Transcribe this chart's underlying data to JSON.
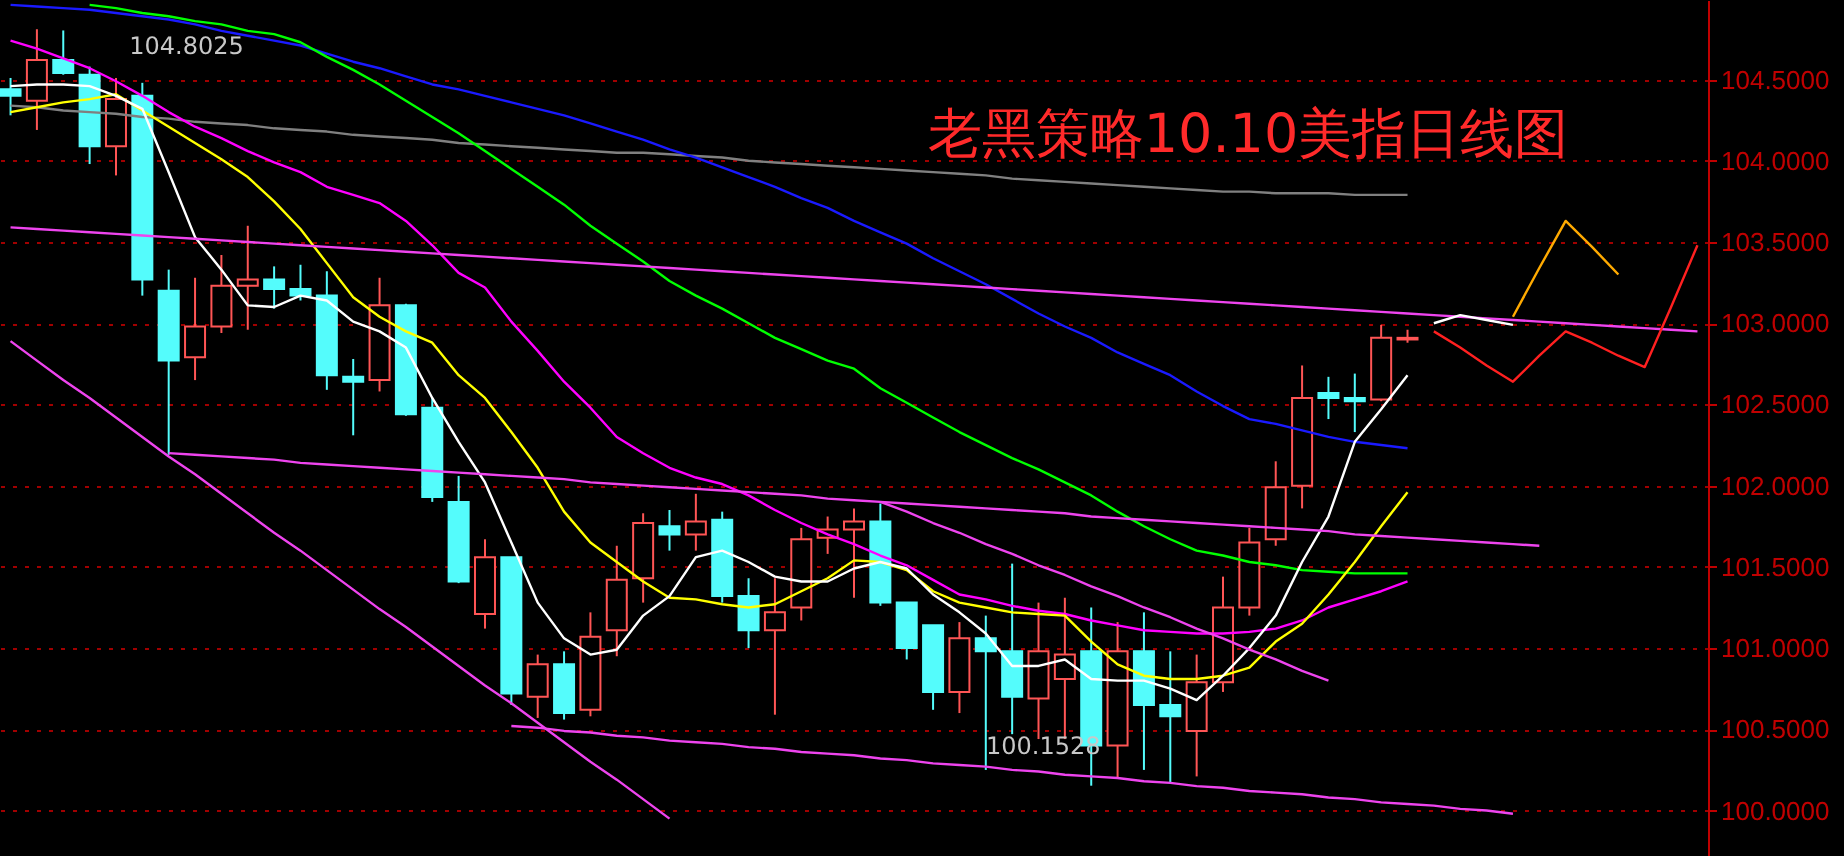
{
  "chart_data": {
    "type": "candlestick",
    "title": "老黑策略10.10美指日线图",
    "categories": [
      null,
      null,
      null,
      null,
      null,
      null,
      null,
      null,
      null,
      null,
      null,
      null,
      null,
      null,
      null,
      null,
      null,
      null,
      null,
      null,
      null,
      null,
      null,
      null,
      null,
      null,
      null,
      null,
      null,
      null,
      null,
      null,
      null,
      null,
      null,
      null,
      null,
      null,
      null,
      null,
      null,
      null,
      null,
      null,
      null,
      null,
      null,
      null,
      null,
      null,
      null,
      null,
      null,
      null,
      null,
      null,
      null,
      null,
      null,
      null,
      null,
      null,
      null,
      null,
      null
    ],
    "ohlc": [
      [
        104.44,
        104.51,
        104.28,
        104.4
      ],
      [
        104.37,
        104.81,
        104.19,
        104.62
      ],
      [
        104.62,
        104.8025,
        104.53,
        104.54
      ],
      [
        104.53,
        104.58,
        103.98,
        104.09
      ],
      [
        104.09,
        104.51,
        103.91,
        104.38
      ],
      [
        104.4,
        104.48,
        103.17,
        103.27
      ],
      [
        103.2,
        103.33,
        102.19,
        102.77
      ],
      [
        102.79,
        103.28,
        102.65,
        102.98
      ],
      [
        102.98,
        103.42,
        102.94,
        103.23
      ],
      [
        103.23,
        103.6,
        102.96,
        103.27
      ],
      [
        103.27,
        103.35,
        103.09,
        103.21
      ],
      [
        103.21,
        103.36,
        103.14,
        103.17
      ],
      [
        103.17,
        103.32,
        102.59,
        102.68
      ],
      [
        102.67,
        102.78,
        102.31,
        102.64
      ],
      [
        102.65,
        103.28,
        102.58,
        103.11
      ],
      [
        103.11,
        103.12,
        102.43,
        102.44
      ],
      [
        102.48,
        102.54,
        101.9,
        101.93
      ],
      [
        101.9,
        102.06,
        101.4,
        101.41
      ],
      [
        101.21,
        101.67,
        101.12,
        101.56
      ],
      [
        101.56,
        101.56,
        100.65,
        100.72
      ],
      [
        100.7,
        100.96,
        100.57,
        100.9
      ],
      [
        100.9,
        100.98,
        100.56,
        100.6
      ],
      [
        100.62,
        101.22,
        100.58,
        101.07
      ],
      [
        101.11,
        101.63,
        100.95,
        101.42
      ],
      [
        101.43,
        101.83,
        101.28,
        101.77
      ],
      [
        101.75,
        101.85,
        101.6,
        101.7
      ],
      [
        101.7,
        101.95,
        101.6,
        101.78
      ],
      [
        101.79,
        101.84,
        101.28,
        101.32
      ],
      [
        101.32,
        101.43,
        101.0,
        101.11
      ],
      [
        101.11,
        101.43,
        100.59,
        101.22
      ],
      [
        101.25,
        101.74,
        101.17,
        101.67
      ],
      [
        101.68,
        101.81,
        101.58,
        101.73
      ],
      [
        101.73,
        101.86,
        101.31,
        101.78
      ],
      [
        101.78,
        101.89,
        101.26,
        101.28
      ],
      [
        101.28,
        101.28,
        100.93,
        101.0
      ],
      [
        101.14,
        101.14,
        100.62,
        100.73
      ],
      [
        100.73,
        101.16,
        100.6,
        101.06
      ],
      [
        101.06,
        101.2,
        100.25,
        100.98
      ],
      [
        100.98,
        101.52,
        100.47,
        100.7
      ],
      [
        100.69,
        101.28,
        100.44,
        100.98
      ],
      [
        100.81,
        101.31,
        100.44,
        100.96
      ],
      [
        100.98,
        101.25,
        100.1528,
        100.4
      ],
      [
        100.4,
        101.16,
        100.2,
        100.98
      ],
      [
        100.98,
        101.22,
        100.25,
        100.65
      ],
      [
        100.65,
        100.98,
        100.17,
        100.58
      ],
      [
        100.49,
        100.96,
        100.21,
        100.79
      ],
      [
        100.79,
        101.44,
        100.73,
        101.25
      ],
      [
        101.25,
        101.74,
        101.2,
        101.65
      ],
      [
        101.67,
        102.15,
        101.63,
        101.99
      ],
      [
        102.0,
        102.74,
        101.86,
        102.54
      ],
      [
        102.57,
        102.67,
        102.41,
        102.54
      ],
      [
        102.54,
        102.69,
        102.33,
        102.52
      ],
      [
        102.53,
        102.99,
        102.52,
        102.91
      ],
      [
        102.9,
        102.96,
        102.88,
        102.91
      ],
      null,
      null,
      null,
      null,
      null,
      null,
      null,
      null,
      null,
      null,
      null
    ],
    "colors": [
      "#54fcfc",
      "#ff5555",
      "#54fcfc",
      "#54fcfc",
      "#ff5555",
      "#54fcfc",
      "#54fcfc",
      "#ff5555",
      "#ff5555",
      "#ff5555",
      "#54fcfc",
      "#54fcfc",
      "#54fcfc",
      "#54fcfc",
      "#ff5555",
      "#54fcfc",
      "#54fcfc",
      "#54fcfc",
      "#ff5555",
      "#54fcfc",
      "#ff5555",
      "#54fcfc",
      "#ff5555",
      "#ff5555",
      "#ff5555",
      "#54fcfc",
      "#ff5555",
      "#54fcfc",
      "#54fcfc",
      "#ff5555",
      "#ff5555",
      "#ff5555",
      "#ff5555",
      "#54fcfc",
      "#54fcfc",
      "#54fcfc",
      "#ff5555",
      "#54fcfc",
      "#54fcfc",
      "#ff5555",
      "#ff5555",
      "#54fcfc",
      "#ff5555",
      "#54fcfc",
      "#54fcfc",
      "#ff5555",
      "#ff5555",
      "#ff5555",
      "#ff5555",
      "#ff5555",
      "#54fcfc",
      "#54fcfc",
      "#ff5555",
      "#ff5555",
      null,
      null,
      null,
      null,
      null,
      null,
      null,
      null,
      null,
      null,
      null
    ],
    "series": [
      {
        "type": "line",
        "color": "#808080",
        "values": [
          104.34,
          104.33,
          104.31,
          104.3,
          104.29,
          104.27,
          104.26,
          104.24,
          104.23,
          104.22,
          104.2,
          104.19,
          104.18,
          104.16,
          104.15,
          104.14,
          104.13,
          104.11,
          104.1,
          104.09,
          104.08,
          104.07,
          104.06,
          104.05,
          104.05,
          104.04,
          104.03,
          104.02,
          104.0,
          103.99,
          103.98,
          103.97,
          103.96,
          103.95,
          103.94,
          103.93,
          103.92,
          103.91,
          103.89,
          103.88,
          103.87,
          103.86,
          103.85,
          103.84,
          103.83,
          103.82,
          103.81,
          103.81,
          103.8,
          103.8,
          103.8,
          103.79,
          103.79,
          103.79,
          null,
          null,
          null,
          null,
          null,
          null,
          null,
          null,
          null,
          null,
          null
        ]
      },
      {
        "type": "line",
        "color": "#1a1aff",
        "values": [
          104.96,
          104.95,
          104.94,
          104.93,
          104.91,
          104.89,
          104.87,
          104.84,
          104.8,
          104.77,
          104.74,
          104.71,
          104.66,
          104.61,
          104.57,
          104.52,
          104.47,
          104.44,
          104.4,
          104.36,
          104.32,
          104.28,
          104.23,
          104.18,
          104.13,
          104.07,
          104.02,
          103.96,
          103.9,
          103.84,
          103.77,
          103.71,
          103.63,
          103.56,
          103.49,
          103.4,
          103.32,
          103.24,
          103.15,
          103.06,
          102.98,
          102.91,
          102.82,
          102.75,
          102.68,
          102.58,
          102.49,
          102.41,
          102.38,
          102.34,
          102.3,
          102.27,
          102.25,
          102.23,
          null,
          null,
          null,
          null,
          null,
          null,
          null,
          null,
          null,
          null,
          null
        ]
      },
      {
        "type": "line",
        "color": "#00ff00",
        "values": [
          null,
          null,
          null,
          104.96,
          104.94,
          104.91,
          104.89,
          104.86,
          104.84,
          104.8,
          104.78,
          104.73,
          104.64,
          104.56,
          104.47,
          104.37,
          104.27,
          104.17,
          104.06,
          103.95,
          103.84,
          103.73,
          103.6,
          103.49,
          103.38,
          103.26,
          103.17,
          103.09,
          103.0,
          102.91,
          102.84,
          102.77,
          102.72,
          102.6,
          102.51,
          102.42,
          102.33,
          102.25,
          102.17,
          102.1,
          102.02,
          101.94,
          101.84,
          101.75,
          101.67,
          101.6,
          101.57,
          101.53,
          101.51,
          101.48,
          101.47,
          101.46,
          101.46,
          101.46,
          null,
          null,
          null,
          null,
          null,
          null,
          null,
          null,
          null,
          null,
          null
        ]
      },
      {
        "type": "line",
        "color": "#ff00ff",
        "values": [
          104.74,
          104.69,
          104.63,
          104.57,
          104.49,
          104.4,
          104.3,
          104.21,
          104.14,
          104.06,
          103.99,
          103.93,
          103.84,
          103.79,
          103.74,
          103.63,
          103.48,
          103.31,
          103.22,
          103.01,
          102.83,
          102.64,
          102.48,
          102.3,
          102.2,
          102.11,
          102.05,
          102.01,
          101.94,
          101.85,
          101.77,
          101.7,
          101.64,
          101.57,
          101.51,
          101.42,
          101.33,
          101.3,
          101.26,
          101.23,
          101.21,
          101.17,
          101.14,
          101.11,
          101.1,
          101.09,
          101.09,
          101.1,
          101.12,
          101.17,
          101.25,
          101.3,
          101.35,
          101.41,
          null,
          null,
          null,
          null,
          null,
          null,
          null,
          null,
          null,
          null,
          null
        ]
      },
      {
        "type": "line",
        "color": "#ffff00",
        "values": [
          104.3,
          104.33,
          104.36,
          104.38,
          104.41,
          104.31,
          104.21,
          104.11,
          104.01,
          103.9,
          103.75,
          103.58,
          103.37,
          103.16,
          103.04,
          102.95,
          102.88,
          102.68,
          102.54,
          102.33,
          102.11,
          101.84,
          101.65,
          101.53,
          101.41,
          101.31,
          101.3,
          101.27,
          101.25,
          101.27,
          101.35,
          101.43,
          101.54,
          101.53,
          101.48,
          101.35,
          101.28,
          101.25,
          101.22,
          101.21,
          101.2,
          101.04,
          100.9,
          100.83,
          100.81,
          100.81,
          100.83,
          100.88,
          101.04,
          101.15,
          101.33,
          101.53,
          101.75,
          101.96,
          null,
          null,
          null,
          null,
          null,
          null,
          null,
          null,
          null,
          null,
          null
        ]
      },
      {
        "type": "line",
        "color": "#ffffff",
        "values": [
          104.46,
          104.47,
          104.47,
          104.46,
          104.4,
          104.32,
          103.93,
          103.53,
          103.33,
          103.11,
          103.1,
          103.17,
          103.14,
          103.01,
          102.95,
          102.85,
          102.54,
          102.27,
          102.02,
          101.65,
          101.28,
          101.06,
          100.96,
          100.99,
          101.2,
          101.32,
          101.56,
          101.6,
          101.53,
          101.44,
          101.41,
          101.41,
          101.49,
          101.53,
          101.49,
          101.33,
          101.22,
          101.09,
          100.89,
          100.89,
          100.93,
          100.81,
          100.8,
          100.8,
          100.75,
          100.68,
          100.83,
          101.0,
          101.2,
          101.53,
          101.81,
          102.27,
          102.47,
          102.68,
          null,
          null,
          null,
          null,
          null,
          null,
          null,
          null,
          null,
          null,
          null
        ]
      },
      {
        "type": "line",
        "color": "#ee44ee",
        "values": [
          103.59,
          103.58,
          103.57,
          103.56,
          103.55,
          103.54,
          103.53,
          103.52,
          103.51,
          103.5,
          103.49,
          103.48,
          103.47,
          103.46,
          103.45,
          103.44,
          103.43,
          103.42,
          103.41,
          103.4,
          103.39,
          103.38,
          103.37,
          103.36,
          103.35,
          103.34,
          103.33,
          103.32,
          103.31,
          103.3,
          103.29,
          103.28,
          103.27,
          103.26,
          103.25,
          103.24,
          103.23,
          103.22,
          103.21,
          103.2,
          103.19,
          103.18,
          103.17,
          103.16,
          103.15,
          103.14,
          103.13,
          103.12,
          103.11,
          103.1,
          103.09,
          103.08,
          103.07,
          103.06,
          103.05,
          103.04,
          103.03,
          103.02,
          103.01,
          103.0,
          102.99,
          102.98,
          102.97,
          102.96,
          102.95
        ]
      },
      {
        "type": "line",
        "color": "#ee44ee",
        "values": [
          null,
          null,
          null,
          null,
          null,
          null,
          102.2,
          102.19,
          102.18,
          102.17,
          102.16,
          102.14,
          102.13,
          102.12,
          102.11,
          102.1,
          102.09,
          102.08,
          102.07,
          102.06,
          102.05,
          102.04,
          102.02,
          102.01,
          102.0,
          101.99,
          101.98,
          101.97,
          101.96,
          101.95,
          101.94,
          101.92,
          101.91,
          101.9,
          101.89,
          101.88,
          101.87,
          101.86,
          101.85,
          101.84,
          101.83,
          101.81,
          101.8,
          101.79,
          101.78,
          101.77,
          101.76,
          101.75,
          101.74,
          101.73,
          101.72,
          101.7,
          101.69,
          101.68,
          101.67,
          101.66,
          101.65,
          101.64,
          101.63,
          null,
          null,
          null,
          null,
          null,
          null
        ]
      },
      {
        "type": "line",
        "color": "#ee44ee",
        "values": [
          null,
          null,
          null,
          null,
          null,
          null,
          null,
          null,
          null,
          null,
          null,
          null,
          null,
          null,
          null,
          null,
          null,
          null,
          null,
          100.52,
          100.51,
          100.49,
          100.48,
          100.46,
          100.45,
          100.43,
          100.42,
          100.41,
          100.39,
          100.38,
          100.36,
          100.35,
          100.34,
          100.32,
          100.31,
          100.29,
          100.28,
          100.27,
          100.25,
          100.24,
          100.22,
          100.21,
          100.2,
          100.18,
          100.17,
          100.15,
          100.14,
          100.12,
          100.11,
          100.1,
          100.08,
          100.07,
          100.05,
          100.04,
          100.03,
          100.01,
          100.0,
          99.98,
          null,
          null,
          null,
          null,
          null,
          null,
          null
        ]
      },
      {
        "type": "line",
        "color": "#ee44ee",
        "values": [
          102.89,
          102.77,
          102.65,
          102.54,
          102.42,
          102.3,
          102.18,
          102.07,
          101.95,
          101.83,
          101.71,
          101.6,
          101.48,
          101.36,
          101.24,
          101.13,
          101.01,
          100.89,
          100.77,
          100.66,
          100.54,
          100.42,
          100.3,
          100.19,
          100.07,
          99.95,
          null,
          null,
          null,
          null,
          null,
          null,
          null,
          null,
          null,
          null,
          null,
          null,
          null,
          null,
          null,
          null,
          null,
          null,
          null,
          null,
          null,
          null,
          null,
          null,
          null,
          null,
          null,
          null,
          null,
          null,
          null,
          null,
          null,
          null,
          null,
          null,
          null,
          null,
          null
        ]
      },
      {
        "type": "line",
        "color": "#ee44ee",
        "values": [
          null,
          null,
          null,
          null,
          null,
          null,
          null,
          null,
          null,
          null,
          null,
          null,
          null,
          null,
          null,
          null,
          null,
          null,
          null,
          null,
          null,
          null,
          null,
          null,
          null,
          null,
          null,
          null,
          null,
          null,
          null,
          null,
          null,
          101.9,
          101.84,
          101.77,
          101.71,
          101.64,
          101.58,
          101.51,
          101.45,
          101.38,
          101.32,
          101.25,
          101.19,
          101.12,
          101.06,
          100.99,
          100.93,
          100.86,
          100.8,
          null,
          null,
          null,
          null,
          null,
          null,
          null,
          null,
          null,
          null,
          null,
          null,
          null,
          null
        ]
      },
      {
        "type": "line",
        "color": "#ffffff",
        "values": [
          null,
          null,
          null,
          null,
          null,
          null,
          null,
          null,
          null,
          null,
          null,
          null,
          null,
          null,
          null,
          null,
          null,
          null,
          null,
          null,
          null,
          null,
          null,
          null,
          null,
          null,
          null,
          null,
          null,
          null,
          null,
          null,
          null,
          null,
          null,
          null,
          null,
          null,
          null,
          null,
          null,
          null,
          null,
          null,
          null,
          null,
          null,
          null,
          null,
          null,
          null,
          null,
          null,
          null,
          103.0,
          103.05,
          103.02,
          102.99,
          null,
          null,
          null,
          null,
          null,
          null,
          null
        ]
      },
      {
        "type": "line",
        "color": "#ffaa00",
        "values": [
          null,
          null,
          null,
          null,
          null,
          null,
          null,
          null,
          null,
          null,
          null,
          null,
          null,
          null,
          null,
          null,
          null,
          null,
          null,
          null,
          null,
          null,
          null,
          null,
          null,
          null,
          null,
          null,
          null,
          null,
          null,
          null,
          null,
          null,
          null,
          null,
          null,
          null,
          null,
          null,
          null,
          null,
          null,
          null,
          null,
          null,
          null,
          null,
          null,
          null,
          null,
          null,
          null,
          null,
          null,
          null,
          null,
          103.04,
          103.34,
          103.63,
          103.47,
          103.3,
          null,
          null,
          null
        ]
      },
      {
        "type": "line",
        "color": "#ff2020",
        "values": [
          null,
          null,
          null,
          null,
          null,
          null,
          null,
          null,
          null,
          null,
          null,
          null,
          null,
          null,
          null,
          null,
          null,
          null,
          null,
          null,
          null,
          null,
          null,
          null,
          null,
          null,
          null,
          null,
          null,
          null,
          null,
          null,
          null,
          null,
          null,
          null,
          null,
          null,
          null,
          null,
          null,
          null,
          null,
          null,
          null,
          null,
          null,
          null,
          null,
          null,
          null,
          null,
          null,
          null,
          102.95,
          102.85,
          102.74,
          102.64,
          102.8,
          102.95,
          102.88,
          102.8,
          102.73,
          103.1,
          103.48
        ]
      }
    ],
    "annotations": [
      {
        "text": "104.8025",
        "y": 104.8025
      },
      "100.1528"
    ],
    "ylim": [
      99.72,
      104.99
    ],
    "yticks": [
      {
        "value": 100,
        "label": "100.0000"
      },
      {
        "value": 100.5,
        "label": "100.5000"
      },
      {
        "value": 101,
        "label": "101.0000"
      },
      {
        "value": 101.5,
        "label": "101.5000"
      },
      {
        "value": 102,
        "label": "102.0000"
      },
      {
        "value": 102.5,
        "label": "102.5000"
      },
      {
        "value": 103,
        "label": "103.0000"
      },
      {
        "value": 103.5,
        "label": "103.5000"
      },
      {
        "value": 104,
        "label": "104.0000"
      },
      {
        "value": 104.5,
        "label": "104.5000"
      }
    ],
    "grid": "y",
    "tick_labels": "y"
  }
}
